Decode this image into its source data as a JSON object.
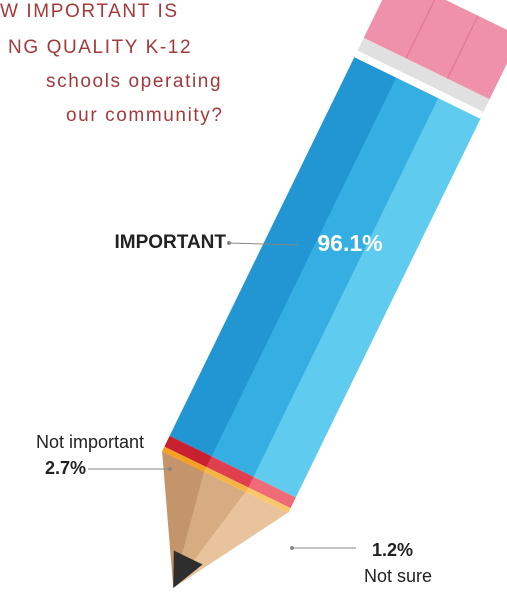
{
  "chart_data": {
    "type": "pencil",
    "title_lines": [
      "W IMPORTANT IS",
      "NG QUALITY K-12",
      "schools operating",
      "our community?"
    ],
    "categories": [
      "IMPORTANT",
      "Not important",
      "Not sure"
    ],
    "values": [
      96.1,
      2.7,
      1.2
    ],
    "value_labels": [
      "96.1%",
      "2.7%",
      "1.2%"
    ],
    "colors": [
      [
        "#2196d3",
        "#35aee2",
        "#5ecbef"
      ],
      [
        "#c8202e",
        "#df3f4e",
        "#f06b78"
      ],
      [
        "#f4a020",
        "#f7b440",
        "#fbc869"
      ]
    ]
  }
}
